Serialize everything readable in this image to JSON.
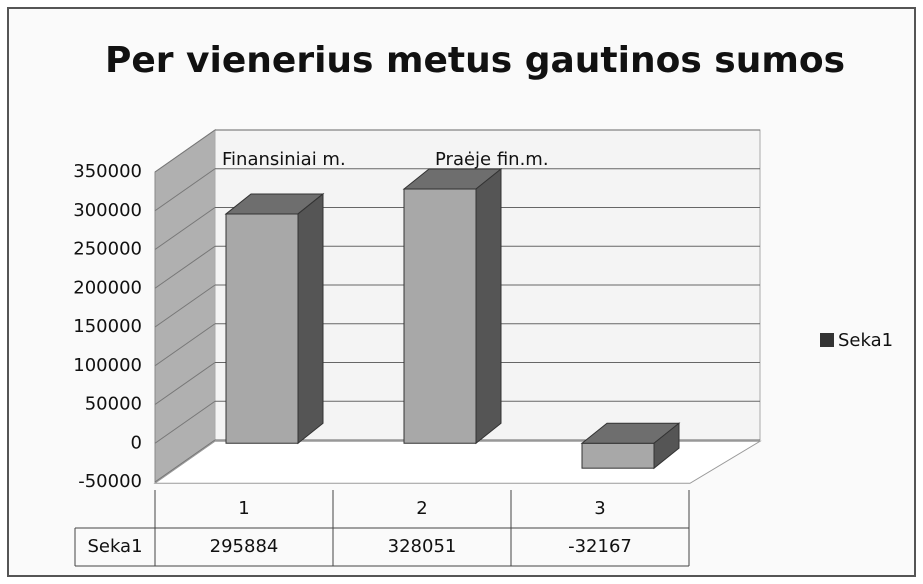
{
  "chart_data": {
    "type": "bar3d",
    "title": "Per vienerius metus gautinos sumos",
    "categories": [
      "1",
      "2",
      "3"
    ],
    "series": [
      {
        "name": "Seka1",
        "color": "#a8a8a8",
        "values": [
          295884,
          328051,
          -32167
        ]
      }
    ],
    "annotations": [
      "Finansiniai m.",
      "Praėje fin.m."
    ],
    "ylim": [
      -50000,
      350000
    ],
    "yticks": [
      -50000,
      0,
      50000,
      100000,
      150000,
      200000,
      250000,
      300000,
      350000
    ],
    "grid": true,
    "legend": "right",
    "data_table": true
  }
}
